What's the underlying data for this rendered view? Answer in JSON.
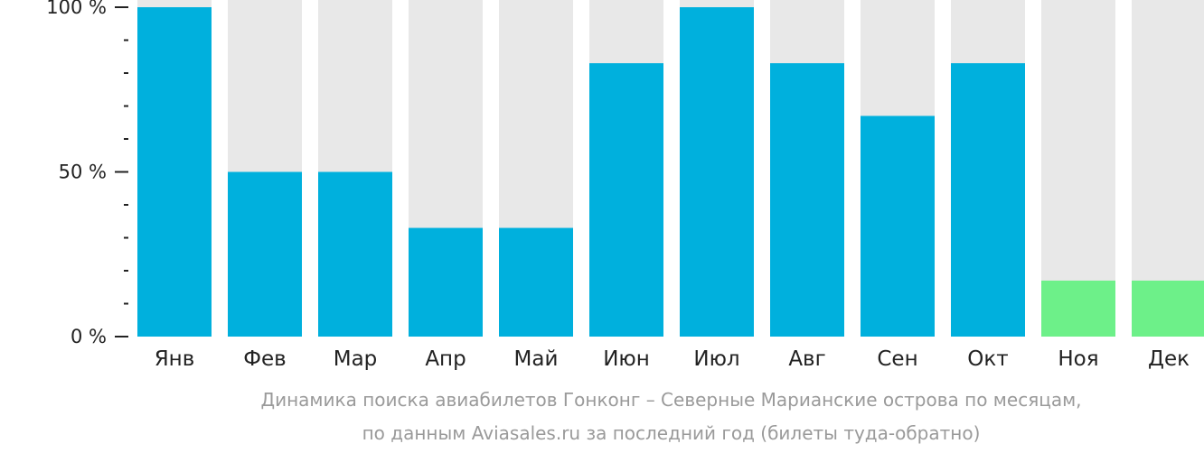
{
  "chart_data": {
    "type": "bar",
    "categories": [
      "Янв",
      "Фев",
      "Мар",
      "Апр",
      "Май",
      "Июн",
      "Июл",
      "Авг",
      "Сен",
      "Окт",
      "Ноя",
      "Дек"
    ],
    "values": [
      100,
      50,
      50,
      33,
      33,
      83,
      100,
      83,
      67,
      83,
      17,
      17
    ],
    "highlight": [
      false,
      false,
      false,
      false,
      false,
      false,
      false,
      false,
      false,
      false,
      true,
      true
    ],
    "y_ticks": [
      {
        "value": 0,
        "label": "0 %"
      },
      {
        "value": 50,
        "label": "50 %"
      },
      {
        "value": 100,
        "label": "100 %"
      }
    ],
    "ylim": [
      0,
      100
    ],
    "minor_tick_step": 10,
    "grid": false,
    "colors": {
      "bar": "#00b0dd",
      "highlight": "#6df089",
      "track": "#e8e8e8",
      "axis": "#222222"
    }
  },
  "caption": {
    "line1": "Динамика поиска авиабилетов Гонконг – Северные Марианские острова по месяцам,",
    "line2": "по данным Aviasales.ru за последний год (билеты туда-обратно)"
  }
}
